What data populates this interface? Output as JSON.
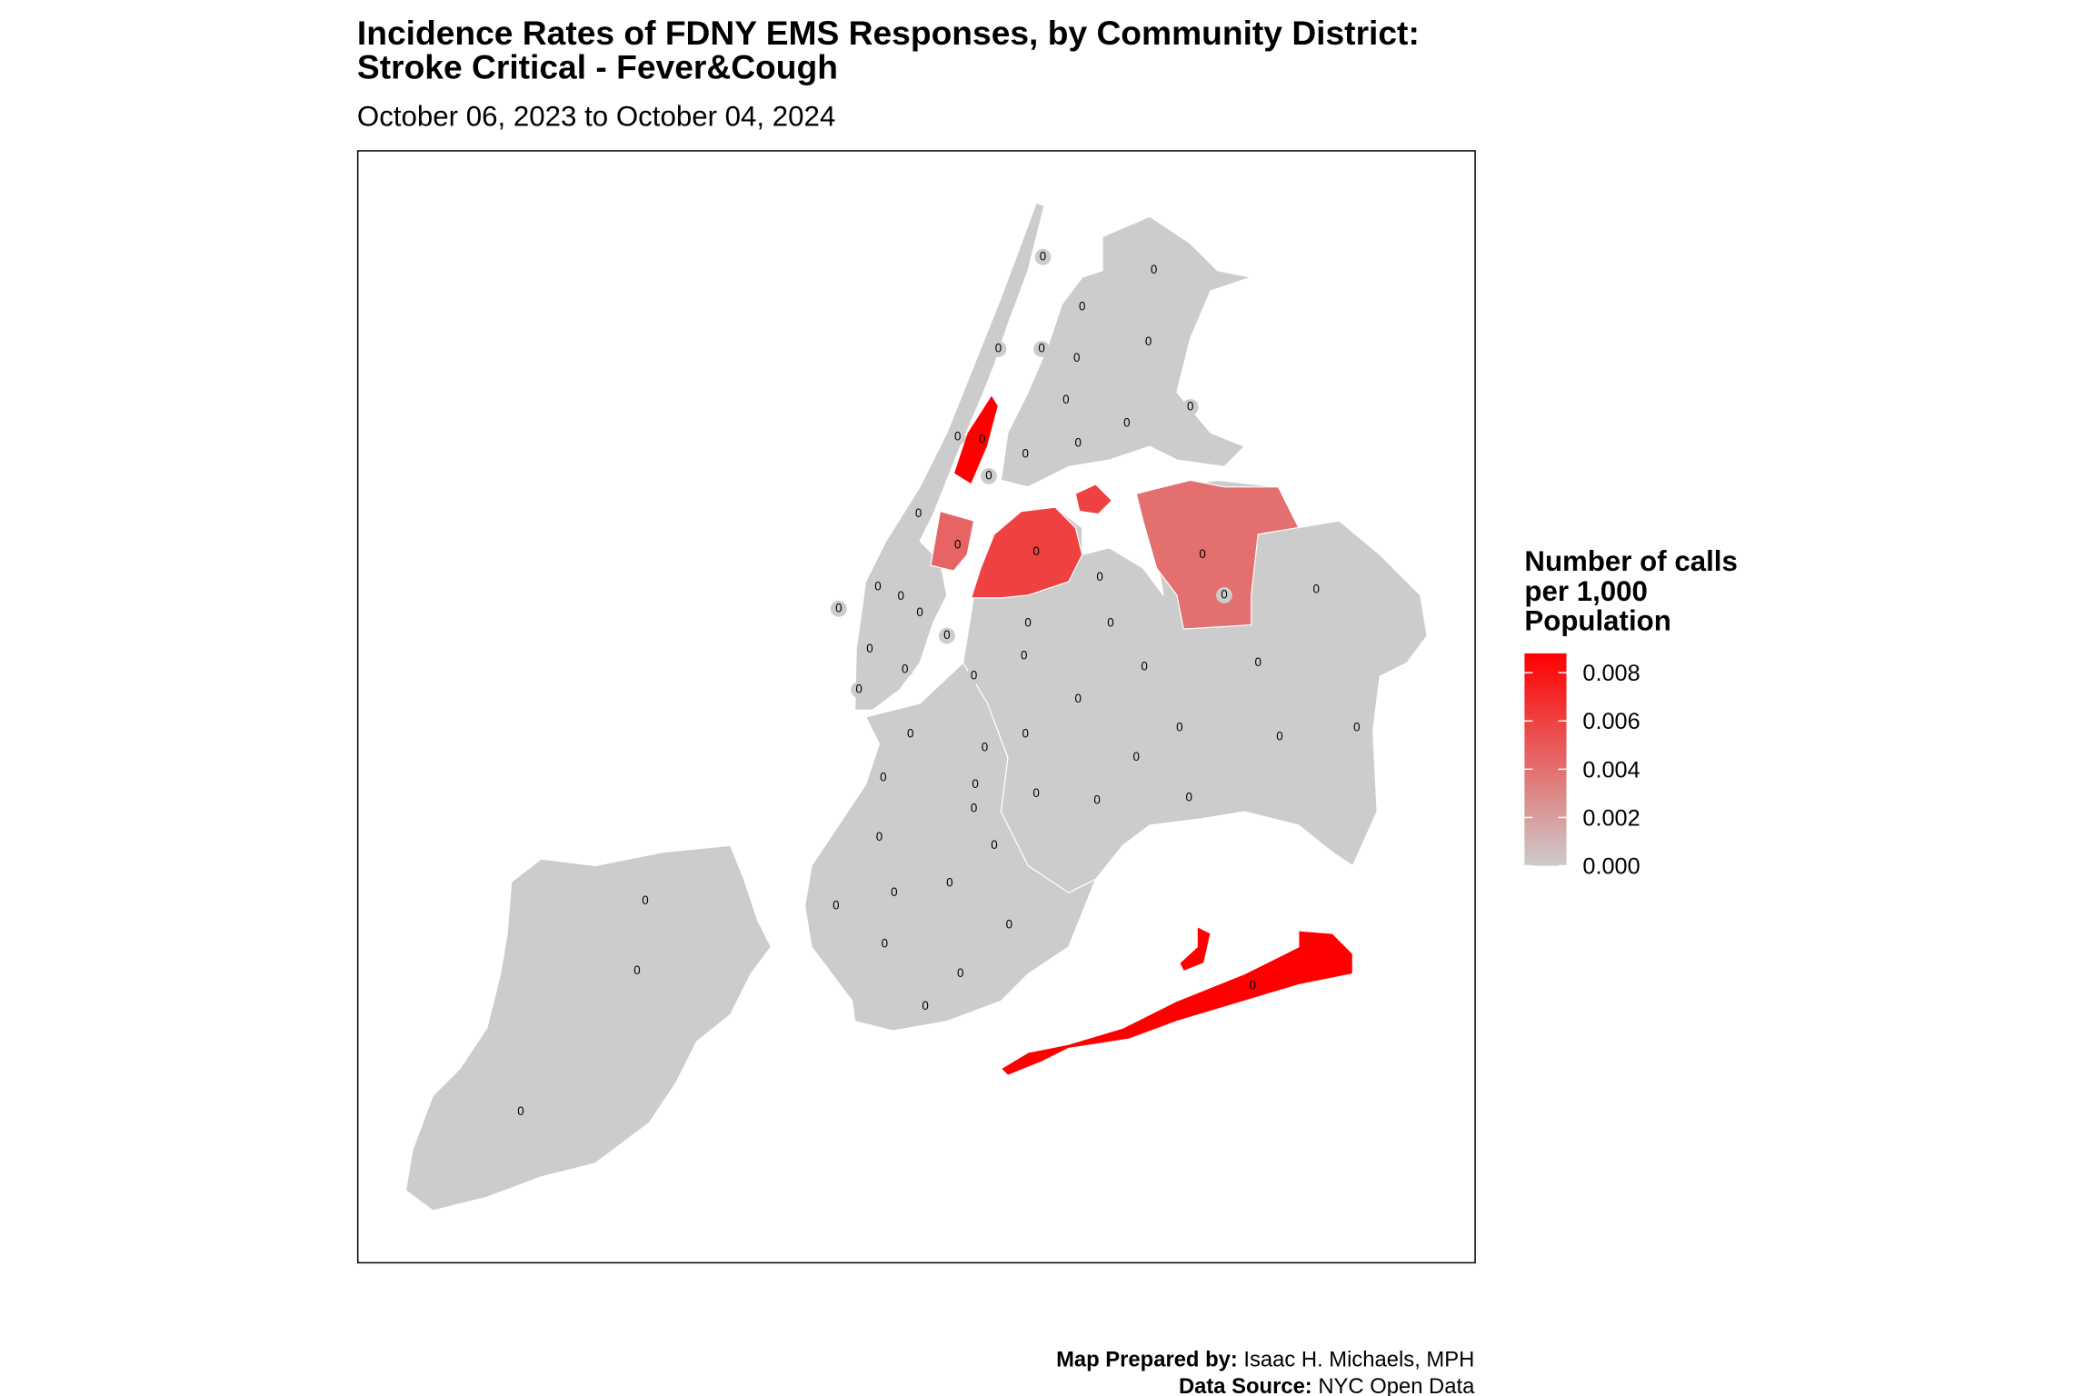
{
  "header": {
    "title": [
      "Incidence Rates of FDNY EMS Responses, by Community District:",
      "Stroke Critical - Fever&Cough"
    ],
    "subtitle": "October 06, 2023 to October 04, 2024"
  },
  "map": {
    "type": "choropleth",
    "color_low": "#cccccc",
    "color_high": "#ff0000",
    "districts": {
      "values": [
        0.0088,
        0.0045,
        0.006,
        0.004,
        0.0088,
        0,
        0,
        0,
        0,
        0,
        0,
        0,
        0,
        0,
        0,
        0,
        0,
        0,
        0,
        0,
        0,
        0,
        0,
        0,
        0,
        0,
        0,
        0,
        0,
        0,
        0,
        0,
        0,
        0,
        0,
        0,
        0,
        0,
        0,
        0,
        0,
        0,
        0,
        0,
        0,
        0,
        0,
        0,
        0,
        0,
        0,
        0,
        0,
        0,
        0,
        0,
        0,
        0,
        0,
        0,
        0,
        0,
        0
      ],
      "value_labels": [
        "0",
        "0",
        "0",
        "0",
        "0",
        "0",
        "0",
        "0",
        "0",
        "0",
        "0",
        "0",
        "0",
        "0",
        "0",
        "0",
        "0",
        "0",
        "0",
        "0",
        "0",
        "0",
        "0",
        "0",
        "0",
        "0",
        "0",
        "0",
        "0",
        "0",
        "0",
        "0",
        "0",
        "0",
        "0",
        "0",
        "0",
        "0",
        "0",
        "0",
        "0",
        "0",
        "0",
        "0",
        "0",
        "0",
        "0",
        "0",
        "0",
        "0",
        "0",
        "0",
        "0",
        "0",
        "0",
        "0",
        "0",
        "0",
        "0",
        "0",
        "0",
        "0",
        "0"
      ]
    }
  },
  "legend": {
    "title": [
      "Number of calls",
      "per 1,000",
      "Population"
    ],
    "lim": [
      0,
      0.0088
    ],
    "ticks": [
      {
        "value": 0,
        "label": "0.000"
      },
      0.002,
      0.004,
      0.006,
      0.008
    ]
  },
  "footer": {
    "lines": [
      {
        "label": "Map Prepared by:",
        "text": "Isaac H. Michaels, MPH"
      },
      {
        "label": "Data Source:",
        "text": "NYC Open Data"
      }
    ]
  }
}
